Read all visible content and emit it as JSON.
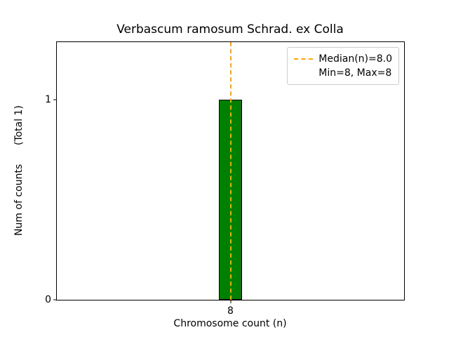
{
  "chart_data": {
    "type": "bar",
    "title": "Verbascum ramosum Schrad. ex Colla",
    "xlabel": "Chromosome count (n)",
    "ylabel": "Num of counts      (Total 1)",
    "categories": [
      8
    ],
    "values": [
      1
    ],
    "bar_width_data": 0.8,
    "bar_color": "#008000",
    "bar_edge_color": "#000000",
    "xlim": [
      2,
      14
    ],
    "ylim": [
      0,
      1.2857
    ],
    "xticks": [
      8
    ],
    "yticks": [
      0,
      1
    ],
    "grid": false,
    "median_line": {
      "x": 8.0,
      "color": "#FFA500",
      "style": "dashed",
      "label": "Median(n)=8.0"
    },
    "legend": {
      "position": "upper right",
      "entries": [
        "Median(n)=8.0",
        "Min=8, Max=8"
      ]
    }
  }
}
